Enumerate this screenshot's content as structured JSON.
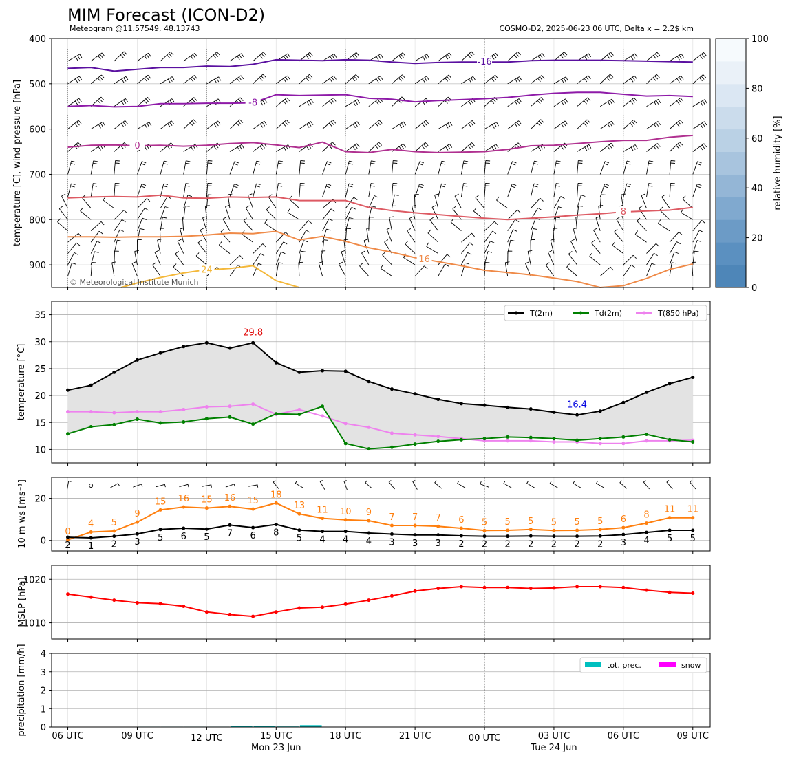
{
  "header": {
    "title": "MIM Forecast (ICON-D2)",
    "subtitle_left": "Meteogram @11.57549, 48.13743",
    "subtitle_right": "COSMO-D2, 2025-06-23 06 UTC, Delta x = 2.2$ km",
    "copyright": "© Meteorological Institute Munich"
  },
  "time_axis": {
    "hours": [
      6,
      7,
      8,
      9,
      10,
      11,
      12,
      13,
      14,
      15,
      16,
      17,
      18,
      19,
      20,
      21,
      22,
      23,
      24,
      25,
      26,
      27,
      28,
      29,
      30,
      31,
      32,
      33
    ],
    "tick_hours": [
      6,
      9,
      12,
      15,
      18,
      21,
      24,
      27,
      30,
      33
    ],
    "tick_labels": [
      "06 UTC",
      "09 UTC",
      "12 UTC",
      "15 UTC",
      "18 UTC",
      "21 UTC",
      "00 UTC",
      "03 UTC",
      "06 UTC",
      "09 UTC"
    ],
    "date_labels": [
      {
        "hour": 15,
        "text": "Mon 23 Jun"
      },
      {
        "hour": 27,
        "text": "Tue 24 Jun"
      }
    ],
    "midnight_hour": 24,
    "range": [
      5.3,
      33.75
    ]
  },
  "chart_data": [
    {
      "type": "line",
      "id": "upper-air",
      "ylabel": "temperature [C], wind pressure [hPa]",
      "yticks": [
        400,
        500,
        600,
        700,
        800,
        900
      ],
      "ylim": [
        950,
        400
      ],
      "colorbar": {
        "label": "relative humidity [%]",
        "ticks": [
          0,
          20,
          40,
          60,
          80,
          100
        ],
        "colors": [
          "#4e86b8",
          "#5b90c0",
          "#6c9bc6",
          "#80a9cf",
          "#94b6d6",
          "#a8c4de",
          "#bad1e5",
          "#cbdcec",
          "#dbe7f3",
          "#eaf1f8",
          "#f6fafd"
        ]
      },
      "wind_levels": [
        450,
        500,
        550,
        600,
        650,
        700,
        750,
        775,
        800,
        825,
        850,
        875,
        900,
        925
      ],
      "series": [
        {
          "label": "-16",
          "label_hour": 24,
          "color": "#5a10a0",
          "values": [
            466,
            464,
            472,
            468,
            464,
            464,
            461,
            462,
            457,
            447,
            448,
            449,
            447,
            448,
            452,
            455,
            453,
            452,
            452,
            452,
            449,
            448,
            448,
            448,
            449,
            450,
            451,
            452
          ]
        },
        {
          "label": "-8",
          "label_hour": 14,
          "color": "#8e1aa8",
          "values": [
            550,
            548,
            551,
            550,
            544,
            544,
            543,
            543,
            542,
            524,
            526,
            525,
            524,
            532,
            534,
            540,
            537,
            535,
            533,
            530,
            525,
            521,
            519,
            519,
            523,
            527,
            526,
            528
          ]
        },
        {
          "label": "0",
          "label_hour": 9,
          "color": "#b03090",
          "values": [
            640,
            636,
            635,
            637,
            636,
            638,
            636,
            632,
            630,
            635,
            641,
            629,
            650,
            652,
            645,
            650,
            652,
            651,
            650,
            645,
            637,
            636,
            632,
            628,
            625,
            625,
            618,
            614
          ]
        },
        {
          "label": "8",
          "label_hour": 30,
          "color": "#dd5a63",
          "values": [
            752,
            750,
            749,
            750,
            746,
            752,
            753,
            750,
            751,
            750,
            758,
            758,
            758,
            773,
            780,
            785,
            789,
            793,
            797,
            800,
            797,
            794,
            790,
            787,
            783,
            781,
            779,
            773
          ]
        },
        {
          "label": "16",
          "label_hour": 21.4,
          "color": "#ef8a48",
          "values": [
            838,
            838,
            839,
            838,
            838,
            837,
            834,
            830,
            831,
            826,
            845,
            837,
            848,
            862,
            872,
            884,
            893,
            902,
            912,
            917,
            922,
            929,
            937,
            950,
            946,
            930,
            910,
            898
          ]
        },
        {
          "label": "24",
          "label_hour": 12,
          "color": "#f4b83a",
          "x": [
            8.3,
            9,
            10,
            11,
            11.8,
            13,
            14,
            15,
            16
          ],
          "values": [
            950,
            940,
            928,
            918,
            912,
            908,
            902,
            935,
            950
          ]
        }
      ]
    },
    {
      "type": "line",
      "id": "temperature",
      "ylabel": "temperature [$^\\circ$C]",
      "yticks": [
        10,
        15,
        20,
        25,
        30,
        35
      ],
      "ylim": [
        7.5,
        37.5
      ],
      "legend": [
        "T(2m)",
        "Td(2m)",
        "T(850 hPa)"
      ],
      "legend_position": "top-right",
      "max_label": {
        "text": "29.8",
        "hour": 14,
        "value": 29.8,
        "color": "#e00000"
      },
      "min_label": {
        "text": "16.4",
        "hour": 28,
        "value": 16.4,
        "color": "#0000e0"
      },
      "series": [
        {
          "name": "T(2m)",
          "color": "#000000",
          "values": [
            21.0,
            21.9,
            24.3,
            26.6,
            27.9,
            29.1,
            29.8,
            28.8,
            29.8,
            26.1,
            24.3,
            24.6,
            24.5,
            22.6,
            21.2,
            20.3,
            19.3,
            18.5,
            18.2,
            17.8,
            17.5,
            16.9,
            16.4,
            17.1,
            18.7,
            20.6,
            22.2,
            23.4
          ]
        },
        {
          "name": "Td(2m)",
          "color": "#008000",
          "values": [
            12.9,
            14.2,
            14.6,
            15.6,
            14.9,
            15.1,
            15.7,
            16.0,
            14.7,
            16.6,
            16.5,
            18.0,
            11.1,
            10.1,
            10.4,
            11.0,
            11.5,
            11.8,
            12.0,
            12.3,
            12.2,
            12.0,
            11.7,
            12.0,
            12.3,
            12.8,
            11.8,
            11.4
          ]
        },
        {
          "name": "T(850 hPa)",
          "color": "#ee82ee",
          "values": [
            17.0,
            17.0,
            16.8,
            17.0,
            17.0,
            17.4,
            17.9,
            18.0,
            18.4,
            16.5,
            17.4,
            16.2,
            14.8,
            14.1,
            13.0,
            12.7,
            12.4,
            12.0,
            11.6,
            11.6,
            11.6,
            11.4,
            11.4,
            11.1,
            11.1,
            11.6,
            11.6,
            11.7
          ]
        }
      ]
    },
    {
      "type": "line",
      "id": "wind",
      "ylabel": "10 m ws [ms$^{-1}$]",
      "yticks": [
        0,
        20
      ],
      "ylim": [
        -5,
        30
      ],
      "series": [
        {
          "name": "gust",
          "color": "#ff7f0e",
          "values": [
            0.3,
            4,
            4.5,
            8.7,
            14.5,
            15.9,
            15.4,
            16.2,
            14.9,
            17.8,
            12.6,
            10.5,
            9.8,
            9.4,
            7.1,
            7.1,
            6.7,
            5.8,
            4.7,
            4.8,
            5.2,
            4.7,
            4.8,
            5.2,
            6.1,
            8.2,
            10.8,
            10.8
          ],
          "labels": [
            "0",
            "4",
            "5",
            "9",
            "15",
            "16",
            "15",
            "16",
            "15",
            "18",
            "13",
            "11",
            "10",
            "9",
            "7",
            "7",
            "7",
            "6",
            "5",
            "5",
            "5",
            "5",
            "5",
            "5",
            "6",
            "8",
            "11",
            "11"
          ]
        },
        {
          "name": "mean",
          "color": "#000000",
          "values": [
            1.5,
            1.2,
            2.0,
            3.1,
            5.2,
            5.8,
            5.4,
            7.3,
            6.1,
            7.6,
            4.9,
            4.3,
            4.3,
            3.5,
            3.0,
            2.6,
            2.6,
            2.2,
            2.0,
            2.0,
            2.1,
            2.0,
            2.0,
            2.1,
            2.8,
            3.8,
            4.8,
            4.8
          ],
          "labels": [
            "2",
            "1",
            "2",
            "3",
            "5",
            "6",
            "5",
            "7",
            "6",
            "8",
            "5",
            "4",
            "4",
            "4",
            "3",
            "3",
            "3",
            "2",
            "2",
            "2",
            "2",
            "2",
            "2",
            "2",
            "3",
            "4",
            "5",
            "5"
          ]
        }
      ]
    },
    {
      "type": "line",
      "id": "mslp",
      "ylabel": "MSLP [hPa]",
      "yticks": [
        1010,
        1020
      ],
      "ylim": [
        1006.3,
        1023.2
      ],
      "series": [
        {
          "name": "MSLP",
          "color": "#ff0000",
          "values": [
            1016.6,
            1015.9,
            1015.2,
            1014.6,
            1014.4,
            1013.8,
            1012.5,
            1011.9,
            1011.5,
            1012.5,
            1013.4,
            1013.6,
            1014.3,
            1015.2,
            1016.2,
            1017.3,
            1017.9,
            1018.3,
            1018.1,
            1018.1,
            1017.9,
            1018.0,
            1018.3,
            1018.3,
            1018.1,
            1017.5,
            1017.0,
            1016.8
          ]
        }
      ]
    },
    {
      "type": "bar",
      "id": "precipitation",
      "ylabel": "precipitation [mm/h]",
      "yticks": [
        0,
        1,
        2,
        3,
        4
      ],
      "ylim": [
        0,
        4
      ],
      "legend": [
        "tot. prec.",
        "snow"
      ],
      "legend_position": "top-right",
      "series": [
        {
          "name": "tot. prec.",
          "color": "#00bfbf",
          "values": [
            0,
            0,
            0,
            0.02,
            0.02,
            0.02,
            0.02,
            0.05,
            0.05,
            0.03,
            0.1,
            0,
            0,
            0,
            0,
            0,
            0,
            0,
            0,
            0,
            0,
            0,
            0,
            0,
            0,
            0,
            0,
            0
          ]
        },
        {
          "name": "snow",
          "color": "#ff00ff",
          "values": [
            0,
            0,
            0,
            0,
            0,
            0,
            0,
            0,
            0,
            0,
            0,
            0,
            0,
            0,
            0,
            0,
            0,
            0,
            0,
            0,
            0,
            0,
            0,
            0,
            0,
            0,
            0,
            0
          ]
        }
      ]
    }
  ]
}
